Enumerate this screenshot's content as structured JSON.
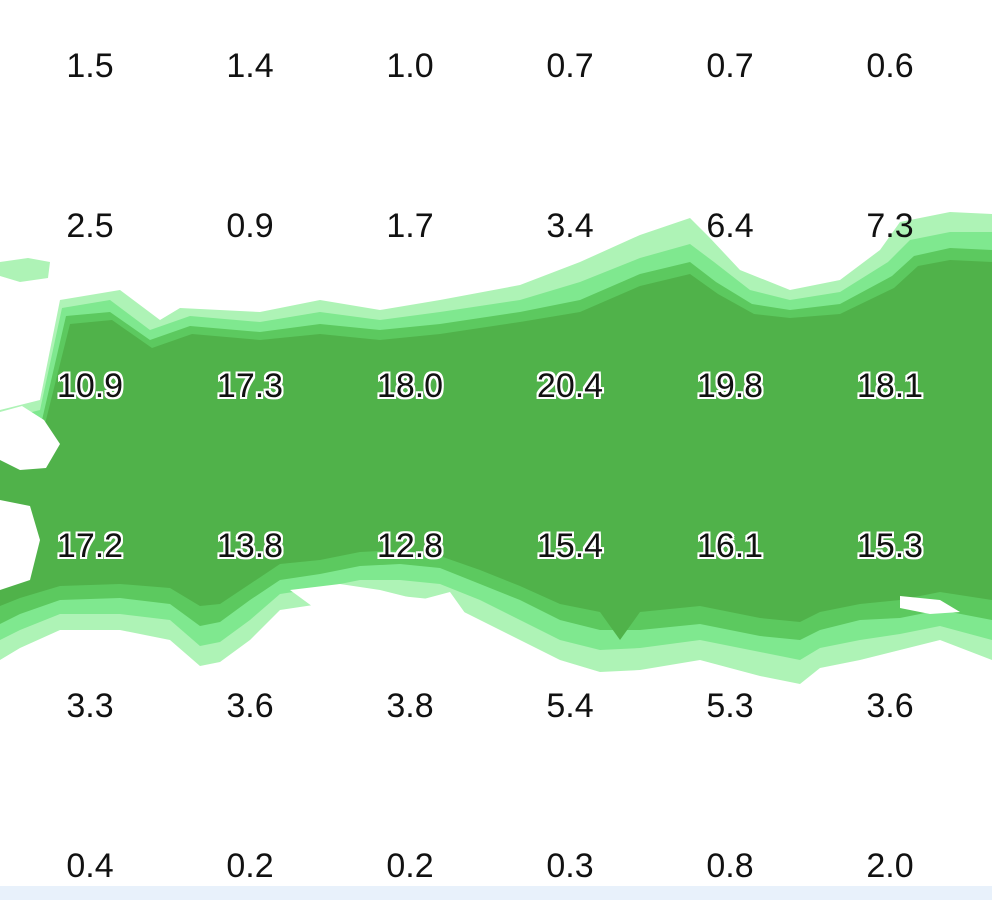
{
  "map": {
    "colors": {
      "background": "#ffffff",
      "level_1": "#aef3b6",
      "level_2": "#7fe88f",
      "level_3": "#5cc95f",
      "level_4": "#50b24a",
      "bottom_bar": "#e8f1fb"
    },
    "grid": {
      "rows": [
        [
          "1.5",
          "1.4",
          "1.0",
          "0.7",
          "0.7",
          "0.6"
        ],
        [
          "2.5",
          "0.9",
          "1.7",
          "3.4",
          "6.4",
          "7.3"
        ],
        [
          "10.9",
          "17.3",
          "18.0",
          "20.4",
          "19.8",
          "18.1"
        ],
        [
          "17.2",
          "13.8",
          "12.8",
          "15.4",
          "16.1",
          "15.3"
        ],
        [
          "3.3",
          "3.6",
          "3.8",
          "5.4",
          "5.3",
          "3.6"
        ],
        [
          "0.4",
          "0.2",
          "0.2",
          "0.3",
          "0.8",
          "2.0"
        ]
      ],
      "highlighted_rows": [
        2,
        3
      ]
    }
  }
}
